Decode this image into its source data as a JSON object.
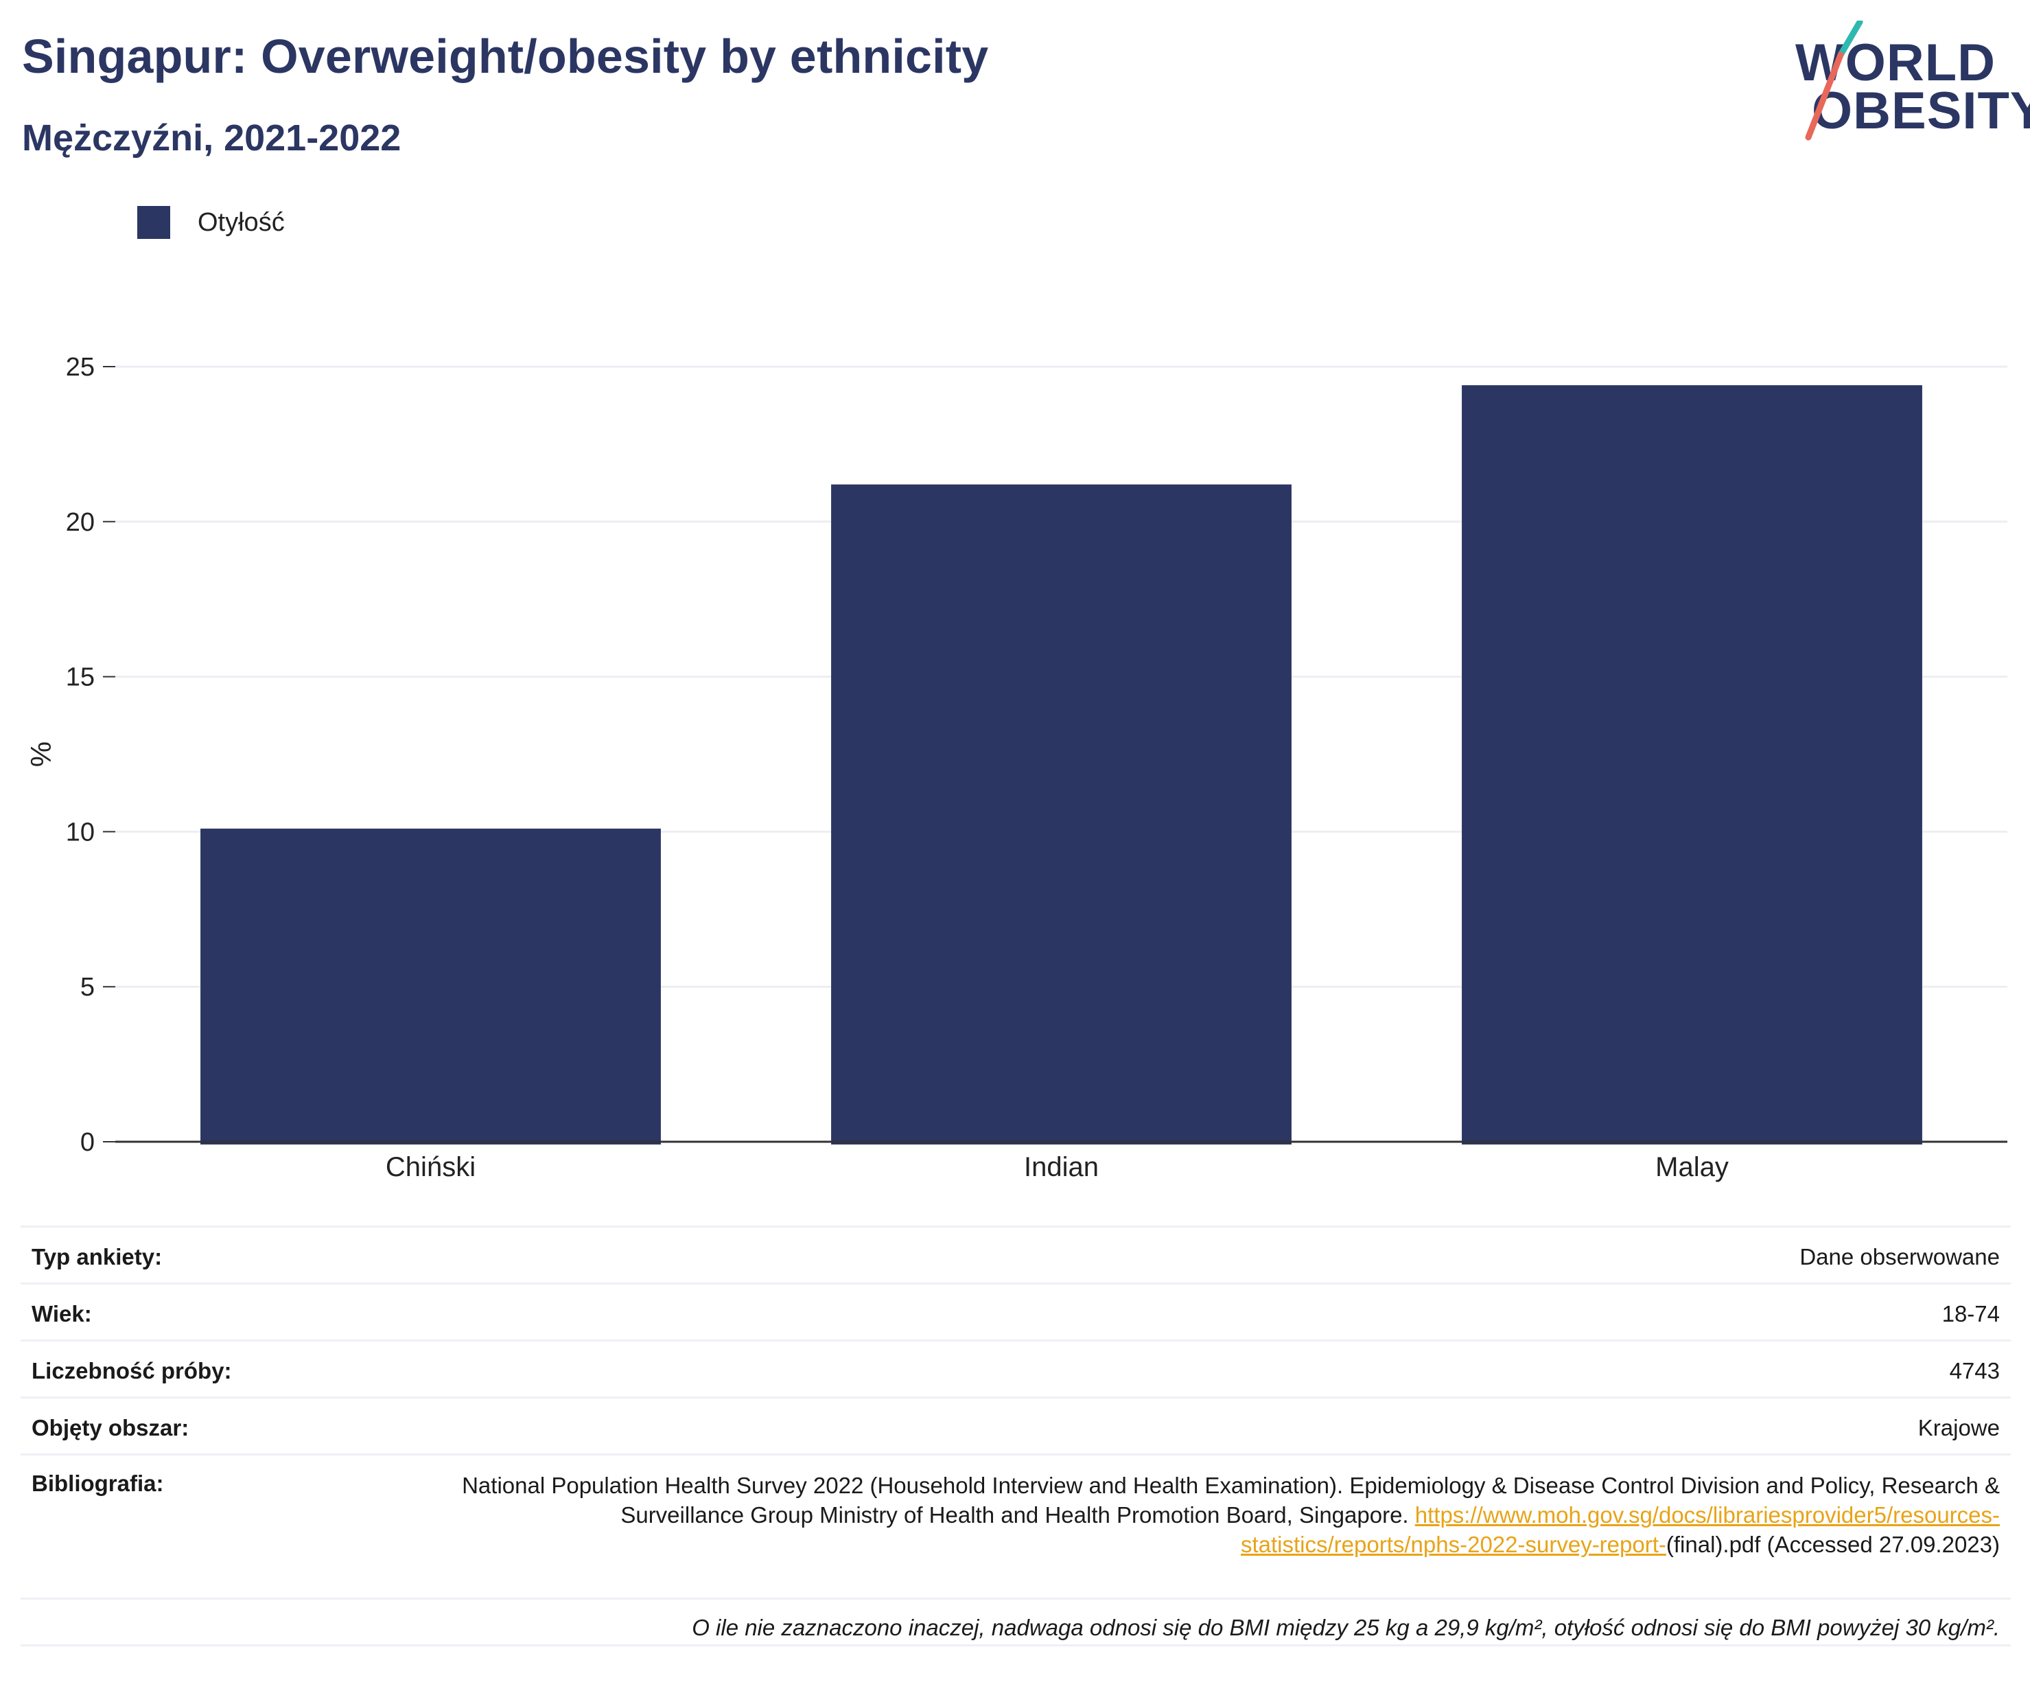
{
  "header": {
    "title": "Singapur: Overweight/obesity by ethnicity",
    "subtitle": "Mężczyźni, 2021-2022"
  },
  "logo": {
    "line1": "WORLD",
    "line2": "OBESITY"
  },
  "legend": {
    "label": "Otyłość"
  },
  "colors": {
    "bar": "#2b3663",
    "accent_teal": "#2fb8b0",
    "accent_coral": "#e8685a",
    "link": "#e8a317"
  },
  "chart_data": {
    "type": "bar",
    "categories": [
      "Chiński",
      "Indian",
      "Malay"
    ],
    "series": [
      {
        "name": "Otyłość",
        "values": [
          10.1,
          21.2,
          24.4
        ]
      }
    ],
    "ylabel": "%",
    "ylim": [
      0,
      25
    ],
    "yticks": [
      0,
      5,
      10,
      15,
      20,
      25
    ],
    "grid": true,
    "legend_position": "top-left"
  },
  "info": {
    "survey_type": {
      "label": "Typ ankiety:",
      "value": "Dane obserwowane"
    },
    "age": {
      "label": "Wiek:",
      "value": "18-74"
    },
    "sample_size": {
      "label": "Liczebność próby:",
      "value": "4743"
    },
    "area": {
      "label": "Objęty obszar:",
      "value": "Krajowe"
    },
    "bibliography": {
      "label": "Bibliografia:",
      "text": "National Population Health Survey 2022 (Household Interview and Health Examination). Epidemiology & Disease Control Division and Policy, Research & Surveillance Group Ministry of Health and Health Promotion Board, Singapore.",
      "link": "https://www.moh.gov.sg/docs/librariesprovider5/resources-statistics/reports/nphs-2022-survey-report-",
      "suffix": "(final).pdf (Accessed 27.09.2023)"
    },
    "note": "O ile nie zaznaczono inaczej, nadwaga odnosi się do BMI między 25 kg a 29,9 kg/m², otyłość odnosi się do BMI powyżej 30 kg/m²."
  }
}
